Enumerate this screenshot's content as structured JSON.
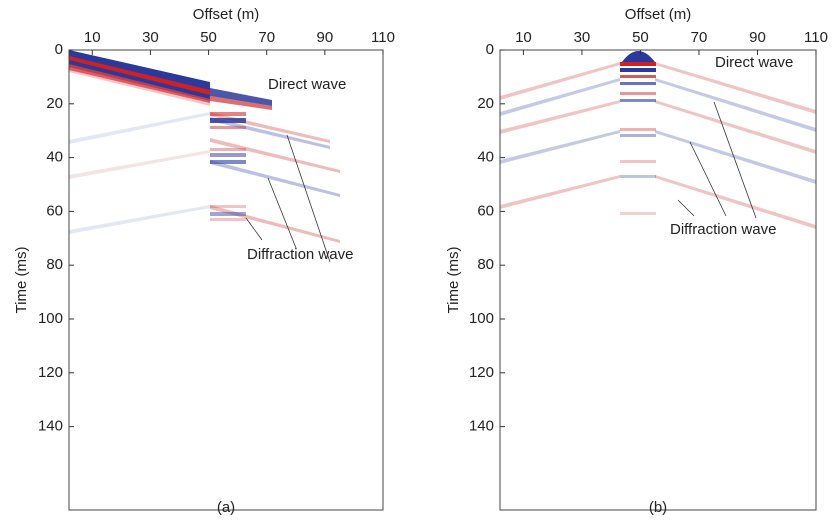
{
  "chart_data": [
    {
      "type": "image",
      "xlabel": "Offset (m)",
      "ylabel": "Time (ms)",
      "xlim": [
        2,
        110
      ],
      "ylim": [
        0,
        171
      ],
      "xticks": [
        10,
        30,
        50,
        70,
        90,
        110
      ],
      "yticks": [
        0,
        20,
        40,
        60,
        80,
        100,
        120,
        140
      ],
      "annotations": [
        "Direct wave",
        "Diffraction wave"
      ],
      "caption": "(a)"
    },
    {
      "type": "image",
      "xlabel": "Offset (m)",
      "ylabel": "Time (ms)",
      "xlim": [
        2,
        110
      ],
      "ylim": [
        0,
        171
      ],
      "xticks": [
        10,
        30,
        50,
        70,
        90,
        110
      ],
      "yticks": [
        0,
        20,
        40,
        60,
        80,
        100,
        120,
        140
      ],
      "annotations": [
        "Direct wave",
        "Diffraction wave"
      ],
      "caption": "(b)"
    }
  ]
}
